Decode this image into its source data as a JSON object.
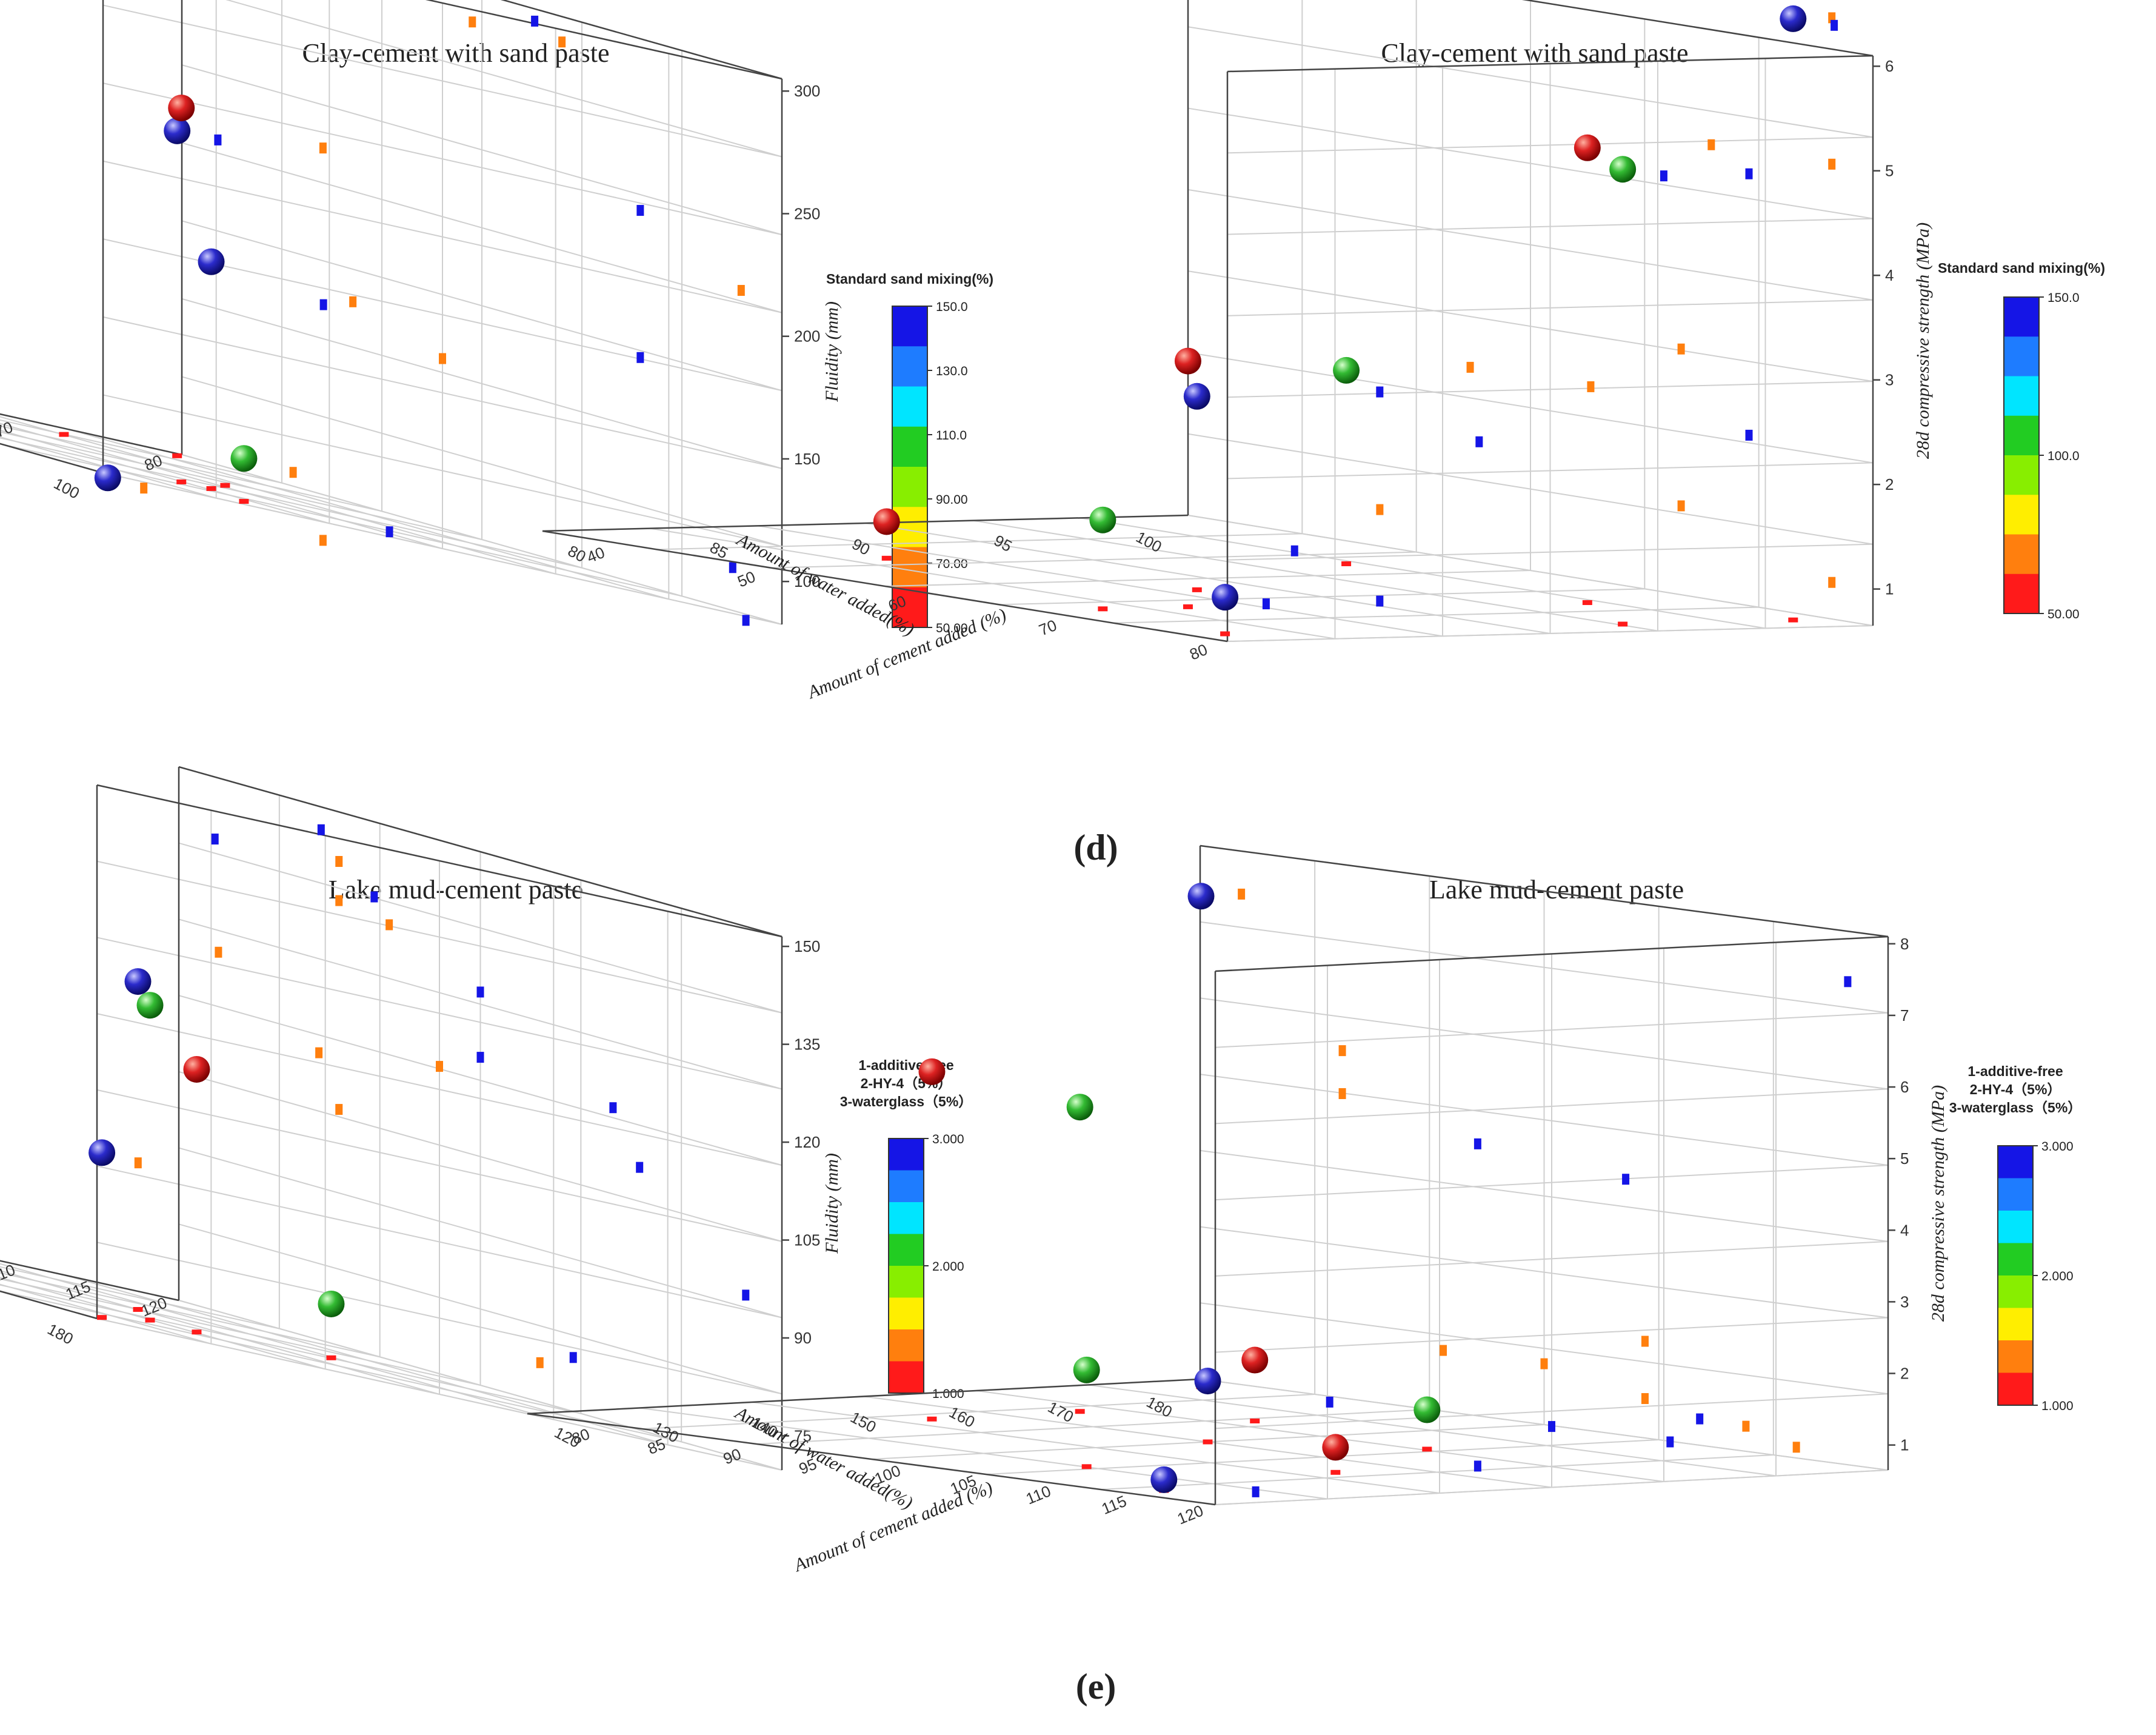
{
  "colors": {
    "red": "#ff1a1a",
    "orange": "#ff7f0e",
    "yellow": "#ffee00",
    "green": "#22cc22",
    "blue": "#1515e6",
    "ball_red": "#dd2222",
    "ball_green": "#33bb33",
    "ball_blue": "#2b2bcc"
  },
  "panel_labels": {
    "d": "(d)",
    "e": "(e)"
  },
  "chart_data": [
    {
      "id": "d-left",
      "type": "scatter",
      "title": "Clay-cement with sand paste",
      "xlabel": "Amount of water added(%)",
      "ylabel": "Amount of cement added (%)",
      "zlabel": "Fluidity (mm)",
      "x_ticks": [
        "80",
        "85",
        "90",
        "95",
        "100"
      ],
      "y_ticks": [
        "40",
        "50",
        "60",
        "70",
        "80"
      ],
      "z_ticks": [
        "100",
        "150",
        "200",
        "250",
        "300"
      ],
      "colorbar": {
        "title": [
          "Standard sand mixing(%)"
        ],
        "ticks": [
          "150.0",
          "130.0",
          "110.0",
          "90.00",
          "70.00",
          "50.00"
        ]
      },
      "points": [
        {
          "x": 100,
          "y": 40,
          "z": 215,
          "c": "blue"
        },
        {
          "x": 94,
          "y": 45,
          "z": 300,
          "c": "red"
        },
        {
          "x": 90,
          "y": 48,
          "z": 160,
          "c": "green"
        },
        {
          "x": 86,
          "y": 53,
          "z": 75,
          "c": "red"
        },
        {
          "x": 87,
          "y": 72,
          "z": 175,
          "c": "blue"
        },
        {
          "x": 91,
          "y": 64,
          "z": 300,
          "c": "green"
        },
        {
          "x": 86,
          "y": 72,
          "z": 235,
          "c": "red"
        },
        {
          "x": 85,
          "y": 79,
          "z": 100,
          "c": "green"
        },
        {
          "x": 80,
          "y": 80,
          "z": 80,
          "c": "blue"
        }
      ]
    },
    {
      "id": "d-right",
      "type": "scatter",
      "title": "Clay-cement with sand paste",
      "xlabel": "Amount of water added(%)",
      "ylabel": "Amount of cement added (%)",
      "zlabel": "28d compressive strength (MPa)",
      "x_ticks": [
        "80",
        "85",
        "90",
        "95",
        "100"
      ],
      "y_ticks": [
        "40",
        "50",
        "60",
        "70",
        "80"
      ],
      "z_ticks": [
        "1",
        "2",
        "3",
        "4",
        "5",
        "6"
      ],
      "colorbar": {
        "title": [
          "Standard sand mixing(%)"
        ],
        "ticks": [
          "150.0",
          "100.0",
          "50.00"
        ]
      },
      "points": [
        {
          "x": 100,
          "y": 40,
          "z": 1.0,
          "c": "blue"
        },
        {
          "x": 95,
          "y": 42,
          "z": 1.5,
          "c": "green"
        },
        {
          "x": 85,
          "y": 48,
          "z": 1.0,
          "c": "red"
        },
        {
          "x": 95,
          "y": 48,
          "z": 3.0,
          "c": "red"
        },
        {
          "x": 92,
          "y": 55,
          "z": 2.5,
          "c": "blue"
        },
        {
          "x": 100,
          "y": 68,
          "z": 5.0,
          "c": "green"
        },
        {
          "x": 88,
          "y": 74,
          "z": 2.5,
          "c": "green"
        },
        {
          "x": 96,
          "y": 74,
          "z": 5.0,
          "c": "red"
        },
        {
          "x": 100,
          "y": 80,
          "z": 6.4,
          "c": "blue"
        }
      ]
    },
    {
      "id": "e-left",
      "type": "scatter",
      "title": "Lake mud-cement paste",
      "xlabel": "Amount of water added(%)",
      "ylabel": "Amount of cement added (%)",
      "zlabel": "Fluidity (mm)",
      "x_ticks": [
        "120",
        "130",
        "140",
        "150",
        "160",
        "170",
        "180"
      ],
      "y_ticks": [
        "80",
        "85",
        "90",
        "95",
        "100",
        "105",
        "110",
        "115",
        "120"
      ],
      "z_ticks": [
        "75",
        "90",
        "105",
        "120",
        "135",
        "150"
      ],
      "colorbar": {
        "title": [
          "1-additive-free",
          "2-HY-4（5%）",
          "3-waterglass（5%）"
        ],
        "ticks": [
          "3.000",
          "2.000",
          "1.000"
        ]
      },
      "points": [
        {
          "x": 120,
          "y": 120,
          "z": 95,
          "c": "blue"
        },
        {
          "x": 140,
          "y": 112,
          "z": 110,
          "c": "red"
        },
        {
          "x": 160,
          "y": 107,
          "z": 78,
          "c": "green"
        },
        {
          "x": 138,
          "y": 110,
          "z": 118,
          "c": "green"
        },
        {
          "x": 128,
          "y": 100,
          "z": 130,
          "c": "red"
        },
        {
          "x": 150,
          "y": 100,
          "z": 120,
          "c": "blue"
        },
        {
          "x": 145,
          "y": 92,
          "z": 140,
          "c": "red"
        },
        {
          "x": 140,
          "y": 88,
          "z": 148,
          "c": "green"
        },
        {
          "x": 140,
          "y": 80,
          "z": 142,
          "c": "blue"
        }
      ]
    },
    {
      "id": "e-right",
      "type": "scatter",
      "title": "Lake mud-cement paste",
      "xlabel": "Amount of water added(%)",
      "ylabel": "Amount of cement added (%)",
      "zlabel": "28d compressive strength (MPa)",
      "x_ticks": [
        "120",
        "130",
        "140",
        "150",
        "160",
        "170",
        "180"
      ],
      "y_ticks": [
        "80",
        "85",
        "90",
        "95",
        "100",
        "105",
        "110",
        "115",
        "120"
      ],
      "z_ticks": [
        "1",
        "2",
        "3",
        "4",
        "5",
        "6",
        "7",
        "8"
      ],
      "colorbar": {
        "title": [
          "1-additive-free",
          "2-HY-4（5%）",
          "3-waterglass（5%）"
        ],
        "ticks": [
          "3.000",
          "2.000",
          "1.000"
        ]
      },
      "points": [
        {
          "x": 120,
          "y": 120,
          "z": 7.5,
          "c": "blue"
        },
        {
          "x": 140,
          "y": 110,
          "z": 1.5,
          "c": "red"
        },
        {
          "x": 160,
          "y": 108,
          "z": 1.2,
          "c": "green"
        },
        {
          "x": 130,
          "y": 105,
          "z": 4.9,
          "c": "green"
        },
        {
          "x": 150,
          "y": 100,
          "z": 1.5,
          "c": "blue"
        },
        {
          "x": 170,
          "y": 95,
          "z": 1.0,
          "c": "red"
        },
        {
          "x": 130,
          "y": 95,
          "z": 5.5,
          "c": "red"
        },
        {
          "x": 160,
          "y": 85,
          "z": 2.0,
          "c": "green"
        },
        {
          "x": 175,
          "y": 80,
          "z": 0.8,
          "c": "blue"
        }
      ]
    }
  ]
}
